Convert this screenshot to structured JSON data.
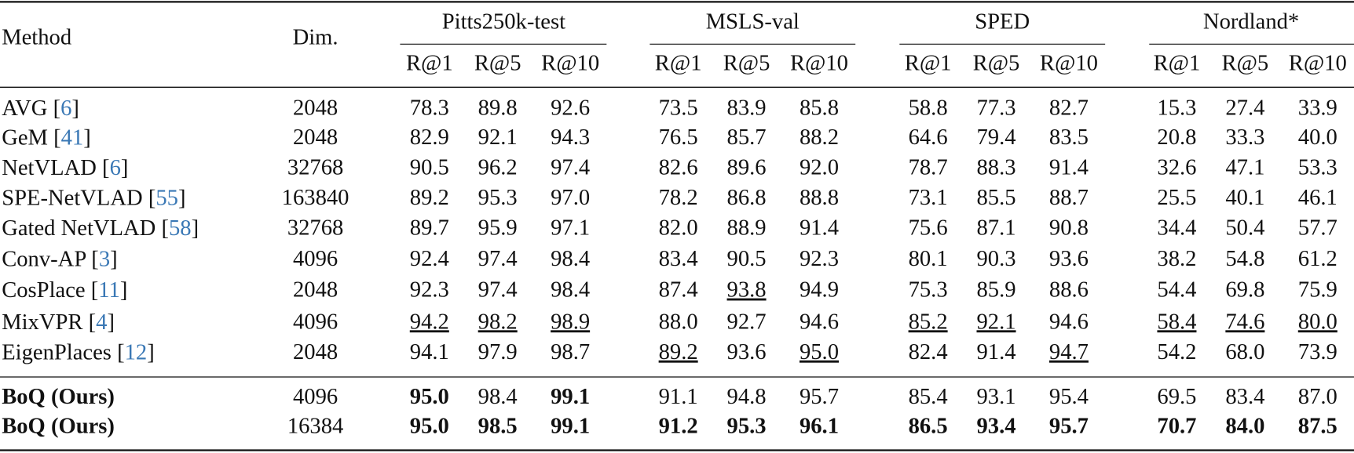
{
  "table": {
    "header": {
      "method": "Method",
      "dim": "Dim.",
      "groups": [
        "Pitts250k-test",
        "MSLS-val",
        "SPED",
        "Nordland*"
      ],
      "metrics": [
        "R@1",
        "R@5",
        "R@10"
      ]
    },
    "rows": [
      {
        "method": "AVG [6]",
        "dim": "2048",
        "values": [
          "78.3",
          "89.8",
          "92.6",
          "73.5",
          "83.9",
          "85.8",
          "58.8",
          "77.3",
          "82.7",
          "15.3",
          "27.4",
          "33.9"
        ]
      },
      {
        "method": "GeM [41]",
        "dim": "2048",
        "values": [
          "82.9",
          "92.1",
          "94.3",
          "76.5",
          "85.7",
          "88.2",
          "64.6",
          "79.4",
          "83.5",
          "20.8",
          "33.3",
          "40.0"
        ]
      },
      {
        "method": "NetVLAD [6]",
        "dim": "32768",
        "values": [
          "90.5",
          "96.2",
          "97.4",
          "82.6",
          "89.6",
          "92.0",
          "78.7",
          "88.3",
          "91.4",
          "32.6",
          "47.1",
          "53.3"
        ]
      },
      {
        "method": "SPE-NetVLAD [55]",
        "dim": "163840",
        "values": [
          "89.2",
          "95.3",
          "97.0",
          "78.2",
          "86.8",
          "88.8",
          "73.1",
          "85.5",
          "88.7",
          "25.5",
          "40.1",
          "46.1"
        ]
      },
      {
        "method": "Gated NetVLAD [58]",
        "dim": "32768",
        "values": [
          "89.7",
          "95.9",
          "97.1",
          "82.0",
          "88.9",
          "91.4",
          "75.6",
          "87.1",
          "90.8",
          "34.4",
          "50.4",
          "57.7"
        ]
      },
      {
        "method": "Conv-AP [3]",
        "dim": "4096",
        "values": [
          "92.4",
          "97.4",
          "98.4",
          "83.4",
          "90.5",
          "92.3",
          "80.1",
          "90.3",
          "93.6",
          "38.2",
          "54.8",
          "61.2"
        ]
      },
      {
        "method": "CosPlace [11]",
        "dim": "2048",
        "values": [
          "92.3",
          "97.4",
          "98.4",
          "87.4",
          "93.8",
          "94.9",
          "75.3",
          "85.9",
          "88.6",
          "54.4",
          "69.8",
          "75.9"
        ],
        "underline": [
          4
        ]
      },
      {
        "method": "MixVPR [4]",
        "dim": "4096",
        "values": [
          "94.2",
          "98.2",
          "98.9",
          "88.0",
          "92.7",
          "94.6",
          "85.2",
          "92.1",
          "94.6",
          "58.4",
          "74.6",
          "80.0"
        ],
        "underline": [
          0,
          1,
          2,
          6,
          7,
          9,
          10,
          11
        ]
      },
      {
        "method": "EigenPlaces [12]",
        "dim": "2048",
        "values": [
          "94.1",
          "97.9",
          "98.7",
          "89.2",
          "93.6",
          "95.0",
          "82.4",
          "91.4",
          "94.7",
          "54.2",
          "68.0",
          "73.9"
        ],
        "underline": [
          3,
          5,
          8
        ]
      },
      {
        "method": "BoQ (Ours)",
        "dim": "4096",
        "values": [
          "95.0",
          "98.4",
          "99.1",
          "91.1",
          "94.8",
          "95.7",
          "85.4",
          "93.1",
          "95.4",
          "69.5",
          "83.4",
          "87.0"
        ],
        "method_bold": true,
        "bold": [
          0,
          2
        ]
      },
      {
        "method": "BoQ (Ours)",
        "dim": "16384",
        "values": [
          "95.0",
          "98.5",
          "99.1",
          "91.2",
          "95.3",
          "96.1",
          "86.5",
          "93.4",
          "95.7",
          "70.7",
          "84.0",
          "87.5"
        ],
        "method_bold": true,
        "bold": [
          0,
          1,
          2,
          3,
          4,
          5,
          6,
          7,
          8,
          9,
          10,
          11
        ]
      }
    ]
  }
}
